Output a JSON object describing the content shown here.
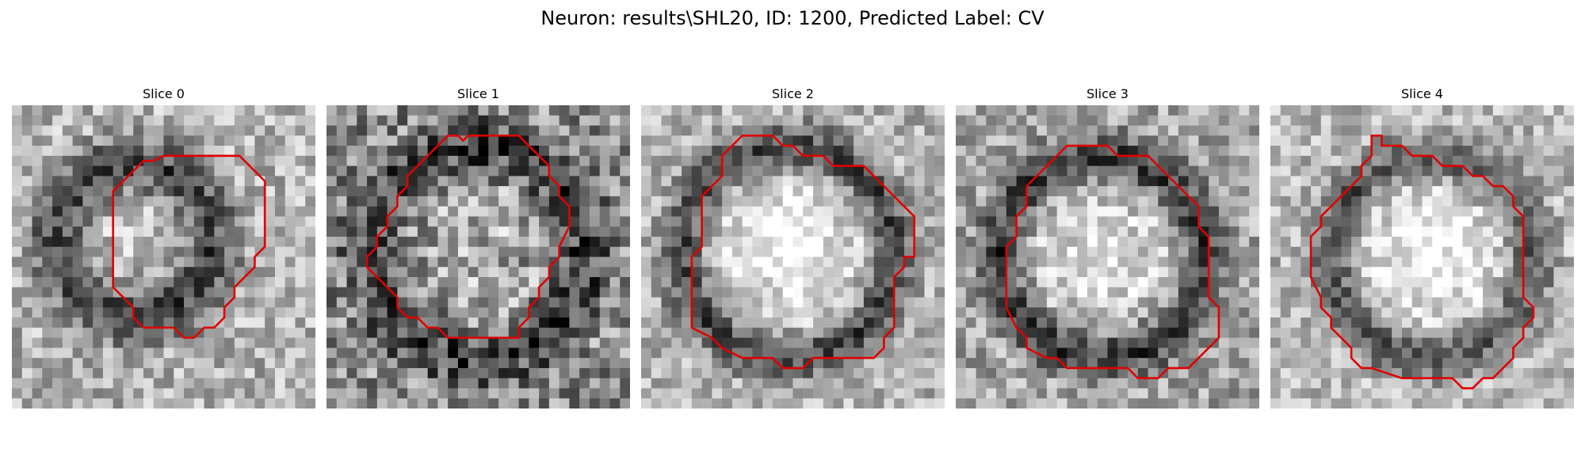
{
  "figure": {
    "title": "Neuron: results\\SHL20, ID: 1200, Predicted Label: CV",
    "contour_color": "#e00000",
    "colormap": "gray"
  },
  "slices": [
    {
      "title": "Slice 0"
    },
    {
      "title": "Slice 1"
    },
    {
      "title": "Slice 2"
    },
    {
      "title": "Slice 3"
    },
    {
      "title": "Slice 4"
    }
  ]
}
